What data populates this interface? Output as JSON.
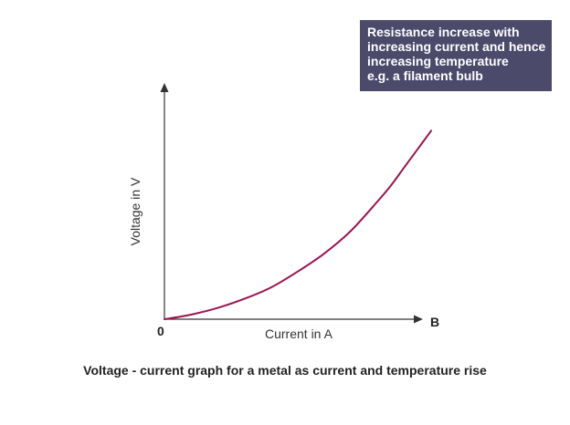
{
  "chart_data": {
    "type": "line",
    "title": "Voltage - current graph for a metal as current and temperature rise",
    "xlabel": "Current in A",
    "ylabel": "Voltage in V",
    "origin_label": "0",
    "x_axis_end_label": "B",
    "annotation": {
      "lines": [
        "Resistance increase with",
        "increasing current and hence",
        "increasing temperature",
        "e.g. a filament bulb"
      ]
    },
    "xlim": [
      0,
      1
    ],
    "ylim": [
      0,
      1
    ],
    "grid": false,
    "series": [
      {
        "x": [
          0.0,
          0.1,
          0.2,
          0.3,
          0.4,
          0.5,
          0.6,
          0.7,
          0.8,
          0.85,
          0.9,
          0.95,
          1.0
        ],
        "y": [
          0.0,
          0.02,
          0.05,
          0.09,
          0.14,
          0.21,
          0.29,
          0.39,
          0.52,
          0.59,
          0.67,
          0.75,
          0.83
        ]
      }
    ],
    "colors": {
      "curve": "#9b1450",
      "axis": "#333333",
      "annotation_bg": "#4b4a6b"
    }
  }
}
